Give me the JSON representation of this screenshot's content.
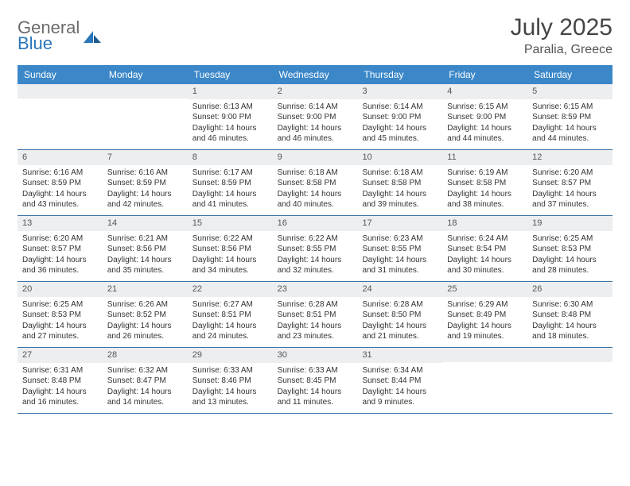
{
  "logo": {
    "line1": "General",
    "line2": "Blue"
  },
  "title": {
    "month": "July 2025",
    "location": "Paralia, Greece"
  },
  "colors": {
    "header_bg": "#3b87c8",
    "row_border": "#3b73a8",
    "daynum_bg": "#eceef0",
    "logo_gray": "#6b6b6b",
    "logo_blue": "#2a77bb"
  },
  "dayNames": [
    "Sunday",
    "Monday",
    "Tuesday",
    "Wednesday",
    "Thursday",
    "Friday",
    "Saturday"
  ],
  "weeks": [
    [
      {
        "num": "",
        "lines": []
      },
      {
        "num": "",
        "lines": []
      },
      {
        "num": "1",
        "lines": [
          "Sunrise: 6:13 AM",
          "Sunset: 9:00 PM",
          "Daylight: 14 hours",
          "and 46 minutes."
        ]
      },
      {
        "num": "2",
        "lines": [
          "Sunrise: 6:14 AM",
          "Sunset: 9:00 PM",
          "Daylight: 14 hours",
          "and 46 minutes."
        ]
      },
      {
        "num": "3",
        "lines": [
          "Sunrise: 6:14 AM",
          "Sunset: 9:00 PM",
          "Daylight: 14 hours",
          "and 45 minutes."
        ]
      },
      {
        "num": "4",
        "lines": [
          "Sunrise: 6:15 AM",
          "Sunset: 9:00 PM",
          "Daylight: 14 hours",
          "and 44 minutes."
        ]
      },
      {
        "num": "5",
        "lines": [
          "Sunrise: 6:15 AM",
          "Sunset: 8:59 PM",
          "Daylight: 14 hours",
          "and 44 minutes."
        ]
      }
    ],
    [
      {
        "num": "6",
        "lines": [
          "Sunrise: 6:16 AM",
          "Sunset: 8:59 PM",
          "Daylight: 14 hours",
          "and 43 minutes."
        ]
      },
      {
        "num": "7",
        "lines": [
          "Sunrise: 6:16 AM",
          "Sunset: 8:59 PM",
          "Daylight: 14 hours",
          "and 42 minutes."
        ]
      },
      {
        "num": "8",
        "lines": [
          "Sunrise: 6:17 AM",
          "Sunset: 8:59 PM",
          "Daylight: 14 hours",
          "and 41 minutes."
        ]
      },
      {
        "num": "9",
        "lines": [
          "Sunrise: 6:18 AM",
          "Sunset: 8:58 PM",
          "Daylight: 14 hours",
          "and 40 minutes."
        ]
      },
      {
        "num": "10",
        "lines": [
          "Sunrise: 6:18 AM",
          "Sunset: 8:58 PM",
          "Daylight: 14 hours",
          "and 39 minutes."
        ]
      },
      {
        "num": "11",
        "lines": [
          "Sunrise: 6:19 AM",
          "Sunset: 8:58 PM",
          "Daylight: 14 hours",
          "and 38 minutes."
        ]
      },
      {
        "num": "12",
        "lines": [
          "Sunrise: 6:20 AM",
          "Sunset: 8:57 PM",
          "Daylight: 14 hours",
          "and 37 minutes."
        ]
      }
    ],
    [
      {
        "num": "13",
        "lines": [
          "Sunrise: 6:20 AM",
          "Sunset: 8:57 PM",
          "Daylight: 14 hours",
          "and 36 minutes."
        ]
      },
      {
        "num": "14",
        "lines": [
          "Sunrise: 6:21 AM",
          "Sunset: 8:56 PM",
          "Daylight: 14 hours",
          "and 35 minutes."
        ]
      },
      {
        "num": "15",
        "lines": [
          "Sunrise: 6:22 AM",
          "Sunset: 8:56 PM",
          "Daylight: 14 hours",
          "and 34 minutes."
        ]
      },
      {
        "num": "16",
        "lines": [
          "Sunrise: 6:22 AM",
          "Sunset: 8:55 PM",
          "Daylight: 14 hours",
          "and 32 minutes."
        ]
      },
      {
        "num": "17",
        "lines": [
          "Sunrise: 6:23 AM",
          "Sunset: 8:55 PM",
          "Daylight: 14 hours",
          "and 31 minutes."
        ]
      },
      {
        "num": "18",
        "lines": [
          "Sunrise: 6:24 AM",
          "Sunset: 8:54 PM",
          "Daylight: 14 hours",
          "and 30 minutes."
        ]
      },
      {
        "num": "19",
        "lines": [
          "Sunrise: 6:25 AM",
          "Sunset: 8:53 PM",
          "Daylight: 14 hours",
          "and 28 minutes."
        ]
      }
    ],
    [
      {
        "num": "20",
        "lines": [
          "Sunrise: 6:25 AM",
          "Sunset: 8:53 PM",
          "Daylight: 14 hours",
          "and 27 minutes."
        ]
      },
      {
        "num": "21",
        "lines": [
          "Sunrise: 6:26 AM",
          "Sunset: 8:52 PM",
          "Daylight: 14 hours",
          "and 26 minutes."
        ]
      },
      {
        "num": "22",
        "lines": [
          "Sunrise: 6:27 AM",
          "Sunset: 8:51 PM",
          "Daylight: 14 hours",
          "and 24 minutes."
        ]
      },
      {
        "num": "23",
        "lines": [
          "Sunrise: 6:28 AM",
          "Sunset: 8:51 PM",
          "Daylight: 14 hours",
          "and 23 minutes."
        ]
      },
      {
        "num": "24",
        "lines": [
          "Sunrise: 6:28 AM",
          "Sunset: 8:50 PM",
          "Daylight: 14 hours",
          "and 21 minutes."
        ]
      },
      {
        "num": "25",
        "lines": [
          "Sunrise: 6:29 AM",
          "Sunset: 8:49 PM",
          "Daylight: 14 hours",
          "and 19 minutes."
        ]
      },
      {
        "num": "26",
        "lines": [
          "Sunrise: 6:30 AM",
          "Sunset: 8:48 PM",
          "Daylight: 14 hours",
          "and 18 minutes."
        ]
      }
    ],
    [
      {
        "num": "27",
        "lines": [
          "Sunrise: 6:31 AM",
          "Sunset: 8:48 PM",
          "Daylight: 14 hours",
          "and 16 minutes."
        ]
      },
      {
        "num": "28",
        "lines": [
          "Sunrise: 6:32 AM",
          "Sunset: 8:47 PM",
          "Daylight: 14 hours",
          "and 14 minutes."
        ]
      },
      {
        "num": "29",
        "lines": [
          "Sunrise: 6:33 AM",
          "Sunset: 8:46 PM",
          "Daylight: 14 hours",
          "and 13 minutes."
        ]
      },
      {
        "num": "30",
        "lines": [
          "Sunrise: 6:33 AM",
          "Sunset: 8:45 PM",
          "Daylight: 14 hours",
          "and 11 minutes."
        ]
      },
      {
        "num": "31",
        "lines": [
          "Sunrise: 6:34 AM",
          "Sunset: 8:44 PM",
          "Daylight: 14 hours",
          "and 9 minutes."
        ]
      },
      {
        "num": "",
        "lines": []
      },
      {
        "num": "",
        "lines": []
      }
    ]
  ]
}
